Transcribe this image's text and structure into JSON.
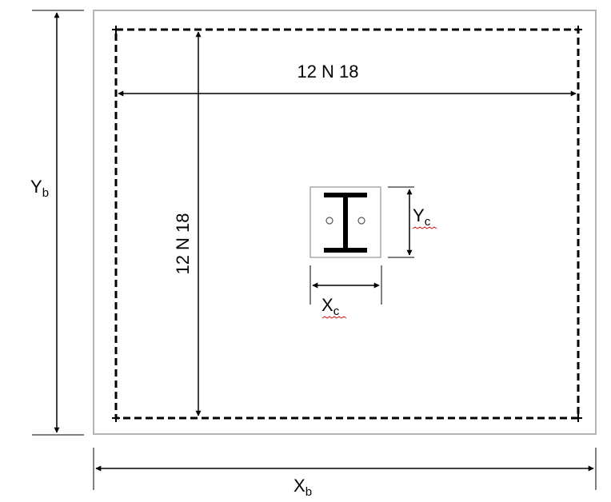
{
  "labels": {
    "top_reinforcement": "12 N 18",
    "side_reinforcement": "12 N 18",
    "yb_main": "Y",
    "yb_sub": "b",
    "xb_main": "X",
    "xb_sub": "b",
    "yc_main": "Y",
    "yc_sub": "c",
    "xc_main": "X",
    "xc_sub": "c"
  },
  "colors": {
    "line": "#000000",
    "footing_outline": "#b4b4b4",
    "column_outline": "#aaaaaa",
    "spellcheck_underline": "#d01818"
  }
}
